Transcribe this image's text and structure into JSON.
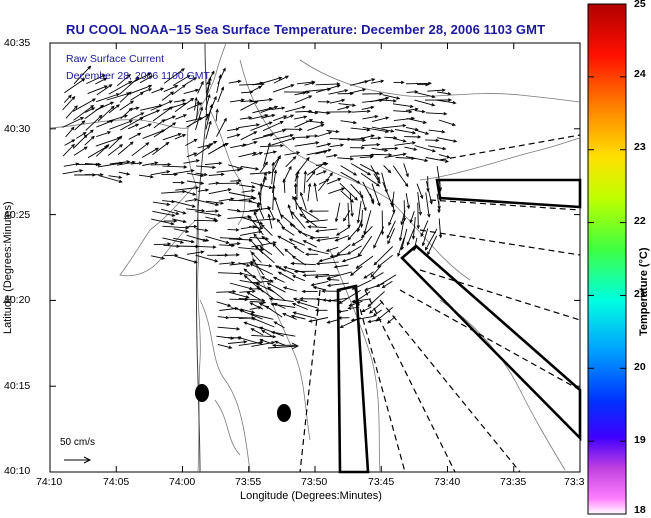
{
  "header": {
    "title": "RU COOL  NOAA−15  Sea Surface Temperature:  December 28, 2006 1103 GMT"
  },
  "legend": {
    "current_title": "Raw Surface Current",
    "current_time": "December 28, 2006 1100 GMT",
    "scale_label": "50 cm/s"
  },
  "axes": {
    "xlabel": "Longitude (Degrees:Minutes)",
    "ylabel": "Latitude (Degrees:Minutes)",
    "x_ticks": [
      "74:10",
      "74:05",
      "74:00",
      "73:55",
      "73:50",
      "73:45",
      "73:40",
      "73:35",
      "73:3"
    ],
    "y_ticks": [
      "40:35",
      "40:30",
      "40:25",
      "40:20",
      "40:15",
      "40:10"
    ]
  },
  "colorbar": {
    "label": "Temperature (°C)",
    "ticks": [
      "25",
      "24",
      "23",
      "22",
      "21",
      "20",
      "19",
      "18"
    ],
    "min": 18,
    "max": 25,
    "colors": [
      "#ff40ff",
      "#9010d0",
      "#0000ff",
      "#00c0ff",
      "#00ffb0",
      "#40ff40",
      "#d0ff00",
      "#ffd000",
      "#ff8000",
      "#ff0000",
      "#b00000"
    ]
  }
}
